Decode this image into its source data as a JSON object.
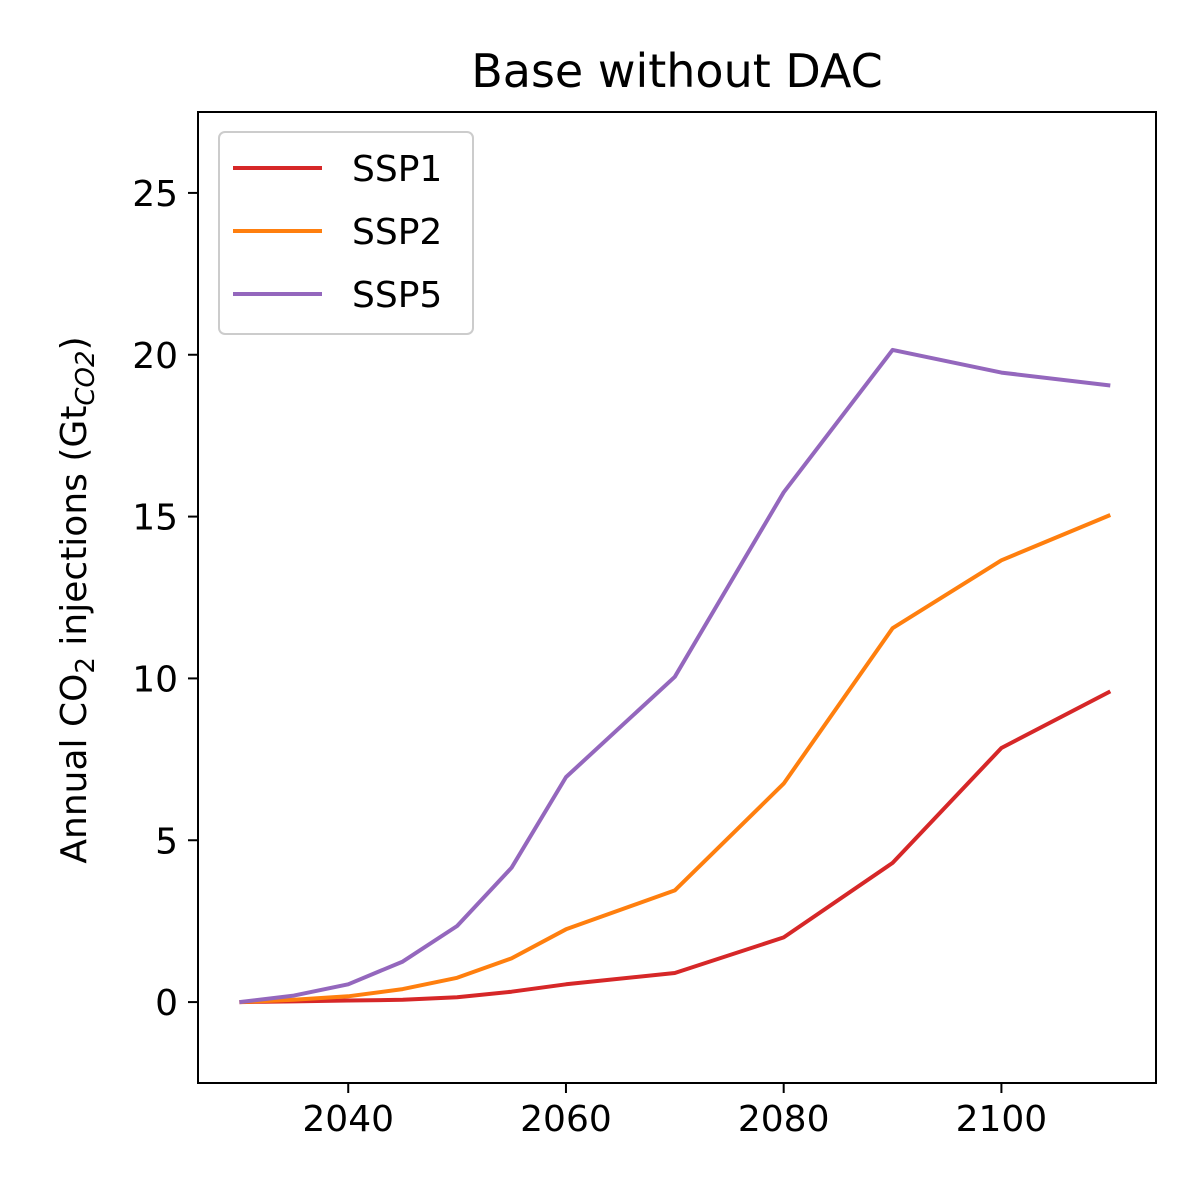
{
  "chart_data": {
    "type": "line",
    "title": "Base without DAC",
    "xlabel": "",
    "ylabel": {
      "prefix": "Annual CO",
      "prefix_sub": "2",
      "middle": " injections (Gt",
      "unit_sub": "CO2",
      "suffix": ")"
    },
    "xlim": [
      2026.2,
      2114.2
    ],
    "ylim": [
      -2.5,
      27.5
    ],
    "xticks": [
      2040,
      2060,
      2080,
      2100
    ],
    "yticks": [
      0,
      5,
      10,
      15,
      20,
      25
    ],
    "grid": false,
    "legend_position": "top-left",
    "x": [
      2030,
      2035,
      2040,
      2045,
      2050,
      2055,
      2060,
      2070,
      2080,
      2090,
      2100,
      2110
    ],
    "series": [
      {
        "name": "SSP1",
        "color": "#d62728",
        "values": [
          0.0,
          0.02,
          0.05,
          0.07,
          0.15,
          0.32,
          0.55,
          0.9,
          2.0,
          4.3,
          7.85,
          9.6
        ]
      },
      {
        "name": "SSP2",
        "color": "#ff7f0e",
        "values": [
          0.0,
          0.07,
          0.18,
          0.4,
          0.75,
          1.35,
          2.25,
          3.45,
          6.75,
          11.55,
          13.65,
          15.05
        ]
      },
      {
        "name": "SSP5",
        "color": "#9467bd",
        "values": [
          0.0,
          0.2,
          0.55,
          1.25,
          2.35,
          4.15,
          6.95,
          10.05,
          15.75,
          20.15,
          19.45,
          19.05
        ]
      }
    ]
  }
}
